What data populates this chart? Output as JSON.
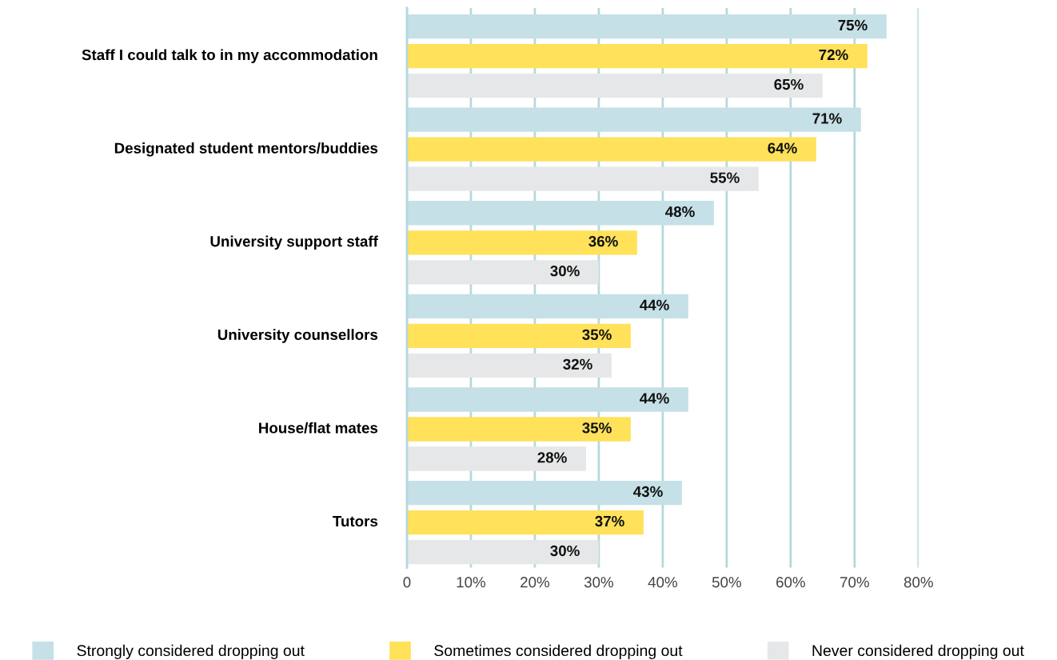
{
  "chart_data": {
    "type": "bar",
    "orientation": "horizontal",
    "categories": [
      "Staff I could talk to in my accommodation",
      "Designated student mentors/buddies",
      "University support staff",
      "University counsellors",
      "House/flat mates",
      "Tutors"
    ],
    "series": [
      {
        "name": "Strongly considered dropping out",
        "color": "#c5e0e6",
        "values": [
          75,
          71,
          48,
          44,
          44,
          43
        ]
      },
      {
        "name": "Sometimes considered dropping out",
        "color": "#ffe15a",
        "values": [
          72,
          64,
          36,
          35,
          35,
          37
        ]
      },
      {
        "name": "Never considered dropping out",
        "color": "#e6e7e8",
        "values": [
          65,
          55,
          30,
          32,
          28,
          30
        ]
      }
    ],
    "xlim": [
      0,
      80
    ],
    "xticks": [
      {
        "value": 0,
        "label": "0"
      },
      {
        "value": 10,
        "label": "10%"
      },
      {
        "value": 20,
        "label": "20%"
      },
      {
        "value": 30,
        "label": "30%"
      },
      {
        "value": 40,
        "label": "40%"
      },
      {
        "value": 50,
        "label": "50%"
      },
      {
        "value": 60,
        "label": "60%"
      },
      {
        "value": 70,
        "label": "70%"
      },
      {
        "value": 80,
        "label": "80%"
      }
    ],
    "value_labels": [
      [
        "75%",
        "71%",
        "48%",
        "44%",
        "44%",
        "43%"
      ],
      [
        "72%",
        "64%",
        "36%",
        "35%",
        "35%",
        "37%"
      ],
      [
        "65%",
        "55%",
        "30%",
        "32%",
        "28%",
        "30%"
      ]
    ],
    "grid": "x",
    "legend": "bottom"
  }
}
